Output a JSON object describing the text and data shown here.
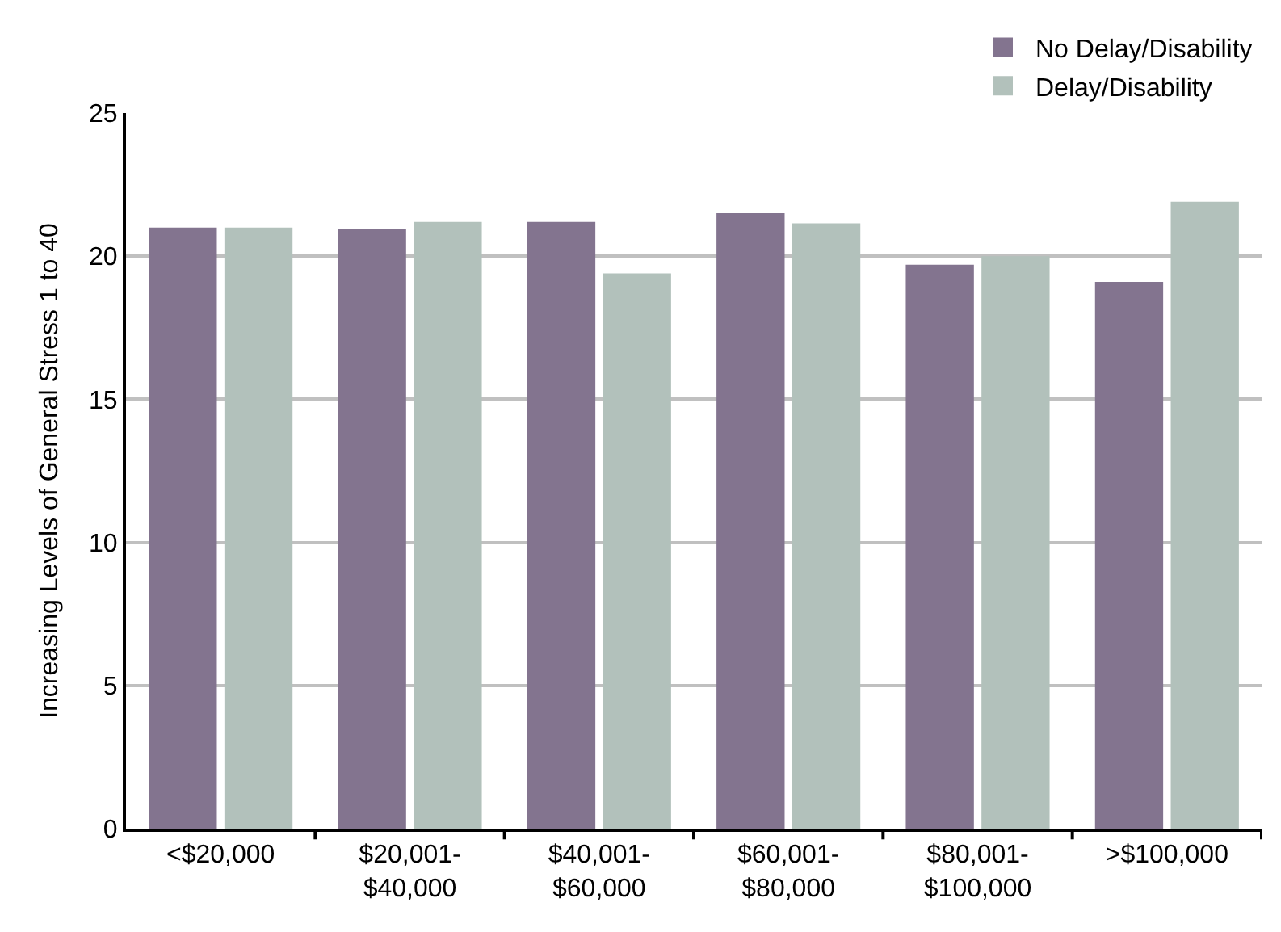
{
  "chart_data": {
    "type": "bar",
    "ylabel": "Increasing Levels of General Stress 1 to 40",
    "categories": [
      "<$20,000",
      "$20,001-\n$40,000",
      "$40,001-\n$60,000",
      "$60,001-\n$80,000",
      "$80,001-\n$100,000",
      ">$100,000"
    ],
    "series": [
      {
        "name": "No Delay/Disability",
        "color": "#83748f",
        "values": [
          21.0,
          20.95,
          21.2,
          21.5,
          19.7,
          19.1
        ]
      },
      {
        "name": "Delay/Disability",
        "color": "#b2c1bb",
        "values": [
          21.0,
          21.2,
          19.4,
          21.15,
          20.0,
          21.9
        ]
      }
    ],
    "ylim": [
      0,
      25
    ],
    "yticks": [
      0,
      5,
      10,
      15,
      20,
      25
    ],
    "grid": "y",
    "legend": "top right"
  }
}
